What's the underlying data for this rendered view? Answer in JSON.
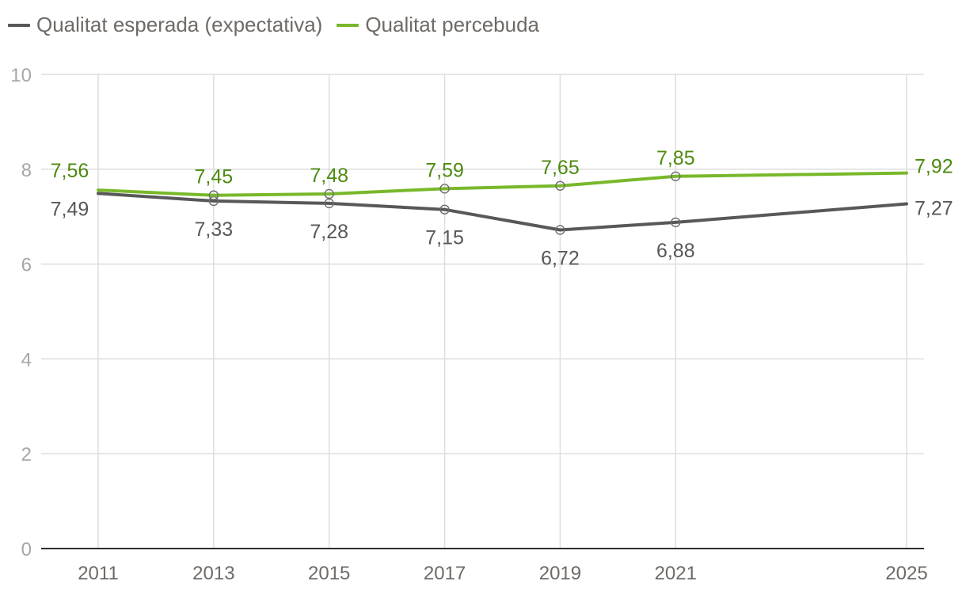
{
  "chart_data": {
    "type": "line",
    "title": "",
    "xlabel": "",
    "ylabel": "",
    "x": [
      "2011",
      "2013",
      "2015",
      "2017",
      "2019",
      "2021",
      "2025"
    ],
    "ylim": [
      0,
      10
    ],
    "yticks": [
      "0",
      "2",
      "4",
      "6",
      "8",
      "10"
    ],
    "grid": true,
    "legend_position": "top-left",
    "series": [
      {
        "name": "Qualitat esperada (expectativa)",
        "color": "#58585a",
        "label_color": "#58585a",
        "values": [
          7.49,
          7.33,
          7.28,
          7.15,
          6.72,
          6.88,
          7.27
        ],
        "labels": [
          "7,49",
          "7,33",
          "7,28",
          "7,15",
          "6,72",
          "6,88",
          "7,27"
        ]
      },
      {
        "name": "Qualitat percebuda",
        "color": "#78b82a",
        "label_color": "#4e8a10",
        "values": [
          7.56,
          7.45,
          7.48,
          7.59,
          7.65,
          7.85,
          7.92
        ],
        "labels": [
          "7,56",
          "7,45",
          "7,48",
          "7,59",
          "7,65",
          "7,85",
          "7,92"
        ]
      }
    ]
  }
}
